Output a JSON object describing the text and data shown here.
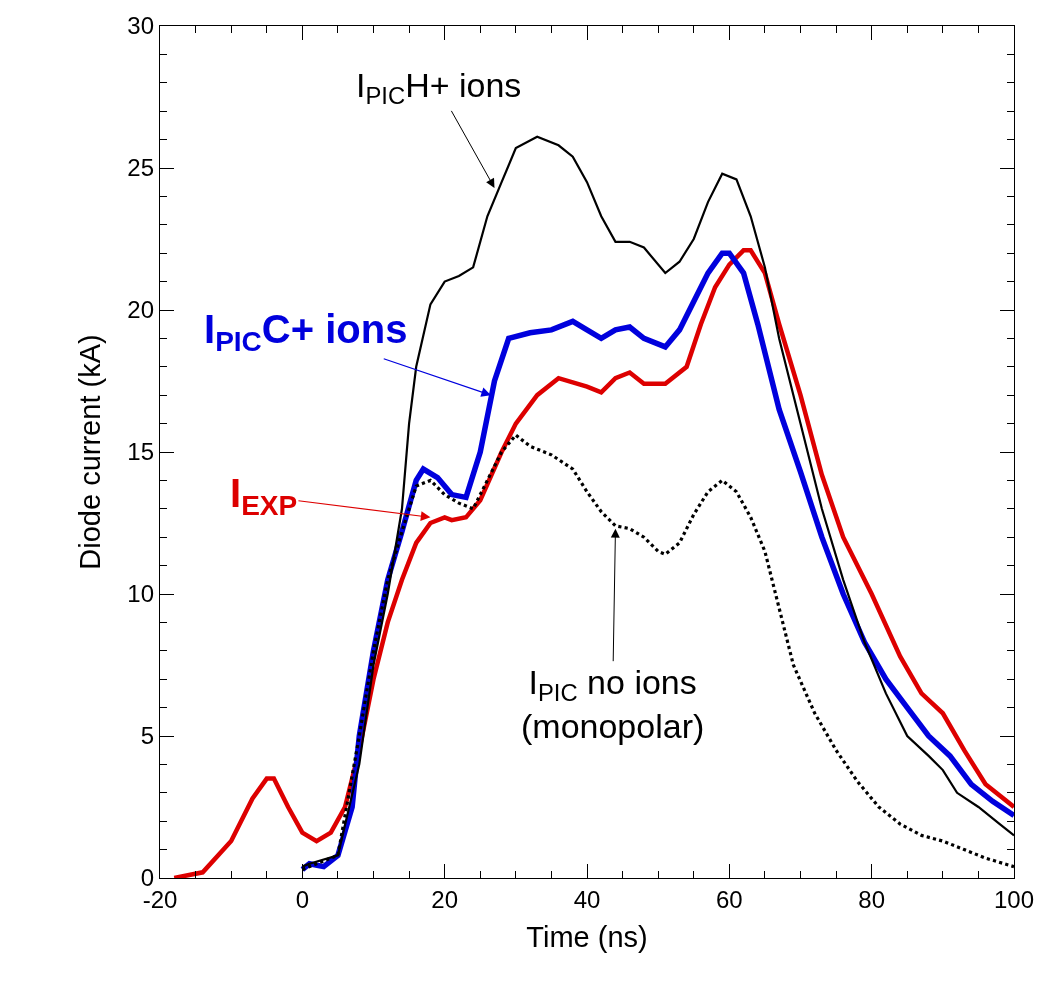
{
  "chart_data": {
    "type": "line",
    "xlabel": "Time (ns)",
    "ylabel": "Diode current (kA)",
    "xlim": [
      -20,
      100
    ],
    "xticks": [
      -20,
      0,
      20,
      40,
      60,
      80,
      100
    ],
    "ylim": [
      0,
      30
    ],
    "yticks": [
      0,
      5,
      10,
      15,
      20,
      25,
      30
    ],
    "series": [
      {
        "color": "#dd0000",
        "line_style": "solid",
        "x": [
          -18,
          -14,
          -10,
          -7,
          -5,
          -4,
          -2,
          0,
          2,
          4,
          6,
          8,
          10,
          12,
          14,
          16,
          18,
          20,
          21,
          23,
          25,
          28,
          30,
          33,
          36,
          40,
          42,
          44,
          46,
          48,
          51,
          54,
          56,
          58,
          60,
          62,
          63,
          65,
          67,
          70,
          73,
          76,
          80,
          84,
          87,
          90,
          93,
          96,
          100
        ],
        "values": [
          0,
          0.2,
          1.3,
          2.8,
          3.5,
          3.5,
          2.5,
          1.6,
          1.3,
          1.6,
          2.5,
          4.5,
          7,
          9,
          10.5,
          11.8,
          12.5,
          12.7,
          12.6,
          12.7,
          13.3,
          15,
          16,
          17,
          17.6,
          17.3,
          17.1,
          17.6,
          17.8,
          17.4,
          17.4,
          18,
          19.5,
          20.8,
          21.6,
          22.1,
          22.1,
          21.3,
          19.5,
          17,
          14.2,
          12,
          10,
          7.8,
          6.5,
          5.8,
          4.5,
          3.3,
          2.5
        ]
      },
      {
        "color": "#0000dd",
        "line_style": "solid",
        "x": [
          0,
          1,
          3,
          5,
          7,
          8,
          10,
          12,
          14,
          16,
          17,
          19,
          21,
          23,
          25,
          27,
          29,
          32,
          35,
          38,
          40,
          42,
          44,
          46,
          48,
          51,
          53,
          55,
          57,
          59,
          60,
          62,
          64,
          67,
          70,
          73,
          76,
          79,
          82,
          85,
          88,
          91,
          94,
          97,
          100
        ],
        "values": [
          0.3,
          0.5,
          0.4,
          0.8,
          2.5,
          5,
          8,
          10.5,
          12.2,
          14,
          14.4,
          14.1,
          13.5,
          13.4,
          15,
          17.5,
          19,
          19.2,
          19.3,
          19.6,
          19.3,
          19,
          19.3,
          19.4,
          19,
          18.7,
          19.3,
          20.3,
          21.3,
          22,
          22,
          21.3,
          19.5,
          16.5,
          14.3,
          12,
          10,
          8.3,
          7,
          6,
          5,
          4.3,
          3.3,
          2.7,
          2.2
        ]
      },
      {
        "color": "#000000",
        "line_style": "solid",
        "x": [
          0,
          1,
          5,
          8,
          10,
          12,
          14,
          15,
          16,
          18,
          20,
          22,
          24,
          26,
          28,
          30,
          33,
          36,
          38,
          40,
          42,
          44,
          46,
          48,
          51,
          53,
          55,
          57,
          59,
          61,
          63,
          65,
          67,
          70,
          73,
          76,
          79,
          82,
          85,
          88,
          90,
          92,
          95,
          98,
          100
        ],
        "values": [
          0.4,
          0.5,
          0.8,
          4,
          7.5,
          10,
          13,
          16,
          18,
          20.2,
          21,
          21.2,
          21.5,
          23.3,
          24.5,
          25.7,
          26.1,
          25.8,
          25.4,
          24.5,
          23.3,
          22.4,
          22.4,
          22.2,
          21.3,
          21.7,
          22.5,
          23.8,
          24.8,
          24.6,
          23.3,
          21.5,
          19,
          16,
          13,
          10.5,
          8.3,
          6.5,
          5,
          4.3,
          3.8,
          3,
          2.5,
          1.9,
          1.5
        ]
      },
      {
        "color": "#000000",
        "line_style": "dotted",
        "x": [
          0,
          5,
          8,
          10,
          12,
          14,
          16,
          18,
          20,
          22,
          24,
          26,
          28,
          30,
          32,
          35,
          38,
          40,
          42,
          44,
          46,
          48,
          50,
          51,
          53,
          55,
          57,
          59,
          61,
          63,
          65,
          67,
          69,
          72,
          75,
          78,
          81,
          84,
          87,
          90,
          93,
          96,
          100
        ],
        "values": [
          0.3,
          0.8,
          5,
          8,
          10.5,
          12.2,
          13.8,
          14,
          13.5,
          13.2,
          13,
          14,
          15,
          15.6,
          15.2,
          14.9,
          14.4,
          13.6,
          12.9,
          12.4,
          12.3,
          12,
          11.5,
          11.4,
          11.8,
          12.8,
          13.6,
          14,
          13.6,
          12.7,
          11.5,
          9.5,
          7.5,
          5.8,
          4.5,
          3.4,
          2.5,
          1.9,
          1.5,
          1.3,
          1,
          0.7,
          0.4
        ]
      }
    ],
    "annotations": [
      {
        "text": "I$_{PIC}$H+ ions",
        "x": 27,
        "y": 24.3
      },
      {
        "text": "I$_{PIC}$C+ ions",
        "x": 26.5,
        "y": 17.0
      },
      {
        "text": "I$_{EXP}$",
        "x": 18,
        "y": 12.7
      },
      {
        "text": "I$_{PIC}$ no ions\n(monopolar)",
        "x": 44,
        "y": 12.3
      }
    ]
  }
}
